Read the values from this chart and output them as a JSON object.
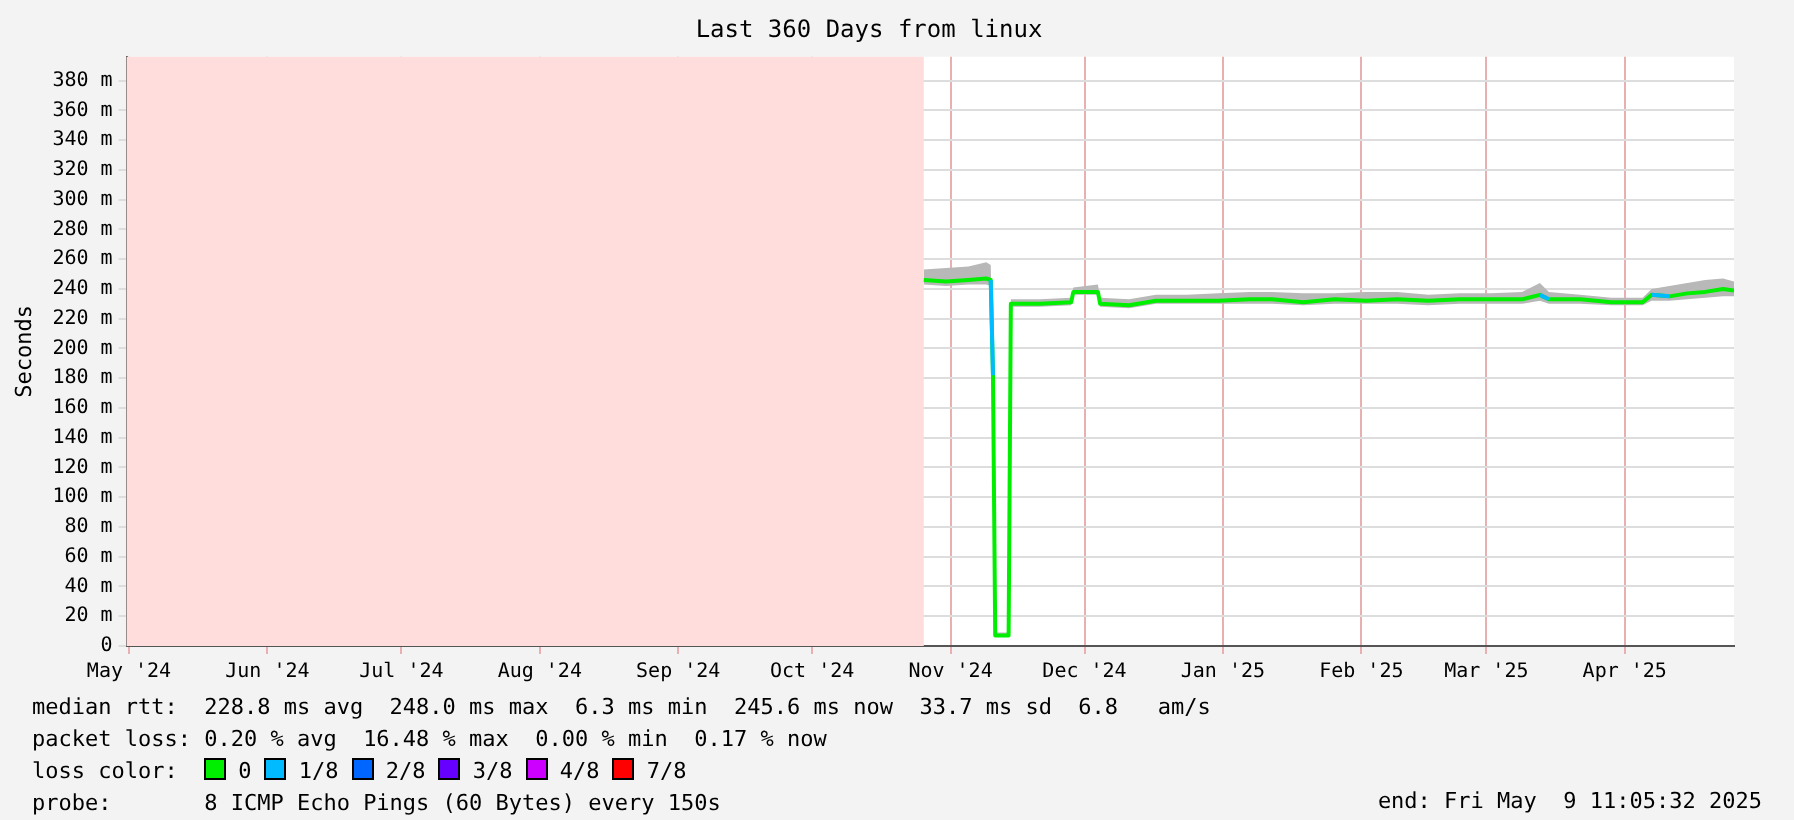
{
  "chart_data": {
    "type": "line",
    "title": "Last 360 Days from linux",
    "ylabel": "Seconds",
    "legend_title": "loss color:",
    "legend": "bottom",
    "grid": true,
    "marker": "none",
    "line_style": "solid",
    "x": [
      "2024-11-09",
      "2024-11-14",
      "2024-11-19",
      "2024-11-23",
      "2024-11-24",
      "2024-11-24T12:00",
      "2024-11-25",
      "2024-11-28",
      "2024-11-28T12:00",
      "2024-12-05",
      "2024-12-12",
      "2024-12-12T12:00",
      "2024-12-18",
      "2024-12-18T12:00",
      "2024-12-25",
      "2024-12-31",
      "2025-01-07",
      "2025-01-14",
      "2025-01-21",
      "2025-01-26",
      "2025-02-02",
      "2025-02-09",
      "2025-02-16",
      "2025-02-23",
      "2025-03-02",
      "2025-03-09",
      "2025-03-16",
      "2025-03-23",
      "2025-03-27",
      "2025-03-29",
      "2025-04-05",
      "2025-04-12",
      "2025-04-19",
      "2025-04-21",
      "2025-04-25",
      "2025-04-29",
      "2025-05-03",
      "2025-05-07",
      "2025-05-09T11:05"
    ],
    "series": [
      {
        "name": "0",
        "color": "#00ee00",
        "values": [
          246,
          245,
          246,
          247,
          246,
          182,
          7,
          7,
          230,
          230,
          231,
          238,
          238,
          230,
          229,
          232,
          232,
          232,
          233,
          233,
          231,
          233,
          232,
          233,
          232,
          233,
          233,
          233,
          236,
          233,
          233,
          231,
          231,
          236,
          235,
          237,
          238,
          240,
          239
        ],
        "lower": [
          243,
          242,
          243,
          243,
          242,
          180,
          6,
          6,
          228,
          228,
          229,
          236,
          236,
          228,
          227,
          230,
          230,
          230,
          230,
          230,
          229,
          230,
          230,
          230,
          229,
          230,
          230,
          230,
          232,
          230,
          230,
          229,
          229,
          232,
          232,
          233,
          234,
          235,
          235
        ],
        "upper": [
          253,
          254,
          255,
          258,
          256,
          190,
          9,
          9,
          233,
          233,
          234,
          241,
          243,
          234,
          233,
          236,
          236,
          237,
          238,
          238,
          237,
          237,
          238,
          238,
          236,
          237,
          237,
          238,
          244,
          238,
          236,
          234,
          234,
          240,
          242,
          244,
          246,
          247,
          245
        ]
      },
      {
        "name": "1/8",
        "color": "#00bbff",
        "values": [
          null,
          null,
          null,
          null,
          246,
          182,
          null,
          null,
          null,
          null,
          null,
          null,
          null,
          null,
          null,
          null,
          null,
          null,
          null,
          null,
          null,
          null,
          null,
          null,
          null,
          null,
          null,
          null,
          236,
          233,
          null,
          null,
          null,
          236,
          235,
          null,
          null,
          null,
          null
        ]
      },
      {
        "name": "2/8",
        "color": "#0066ff",
        "values": [
          null,
          null,
          null,
          null,
          null,
          null,
          null,
          null,
          null,
          null,
          null,
          null,
          null,
          null,
          null,
          null,
          null,
          null,
          null,
          null,
          null,
          null,
          null,
          null,
          null,
          null,
          null,
          null,
          null,
          null,
          null,
          null,
          null,
          null,
          null,
          null,
          null,
          null,
          null
        ]
      },
      {
        "name": "3/8",
        "color": "#6600ff",
        "values": [
          null,
          null,
          null,
          null,
          null,
          null,
          null,
          null,
          null,
          null,
          null,
          null,
          null,
          null,
          null,
          null,
          null,
          null,
          null,
          null,
          null,
          null,
          null,
          null,
          null,
          null,
          null,
          null,
          null,
          null,
          null,
          null,
          null,
          null,
          null,
          null,
          null,
          null,
          null
        ]
      },
      {
        "name": "4/8",
        "color": "#cc00ff",
        "values": [
          null,
          null,
          null,
          null,
          null,
          null,
          null,
          null,
          null,
          null,
          null,
          null,
          null,
          null,
          null,
          null,
          null,
          null,
          null,
          null,
          null,
          null,
          null,
          null,
          null,
          null,
          null,
          null,
          null,
          null,
          null,
          null,
          null,
          null,
          null,
          null,
          null,
          null,
          null
        ]
      },
      {
        "name": "7/8",
        "color": "#ff0000",
        "values": [
          null,
          null,
          null,
          null,
          null,
          null,
          null,
          null,
          null,
          null,
          null,
          null,
          null,
          null,
          null,
          null,
          null,
          null,
          null,
          null,
          null,
          null,
          null,
          null,
          null,
          null,
          null,
          null,
          null,
          null,
          null,
          null,
          null,
          null,
          null,
          null,
          null,
          null,
          null
        ]
      }
    ],
    "xlim": [
      "2024-05-14T11:05",
      "2025-05-09T11:05"
    ],
    "xticks": [
      {
        "value": "2024-05-15",
        "label": "May '24"
      },
      {
        "value": "2024-06-15",
        "label": "Jun '24"
      },
      {
        "value": "2024-07-15",
        "label": "Jul '24"
      },
      {
        "value": "2024-08-15",
        "label": "Aug '24"
      },
      {
        "value": "2024-09-15",
        "label": "Sep '24"
      },
      {
        "value": "2024-10-15",
        "label": "Oct '24"
      },
      {
        "value": "2024-11-15",
        "label": "Nov '24"
      },
      {
        "value": "2024-12-15",
        "label": "Dec '24"
      },
      {
        "value": "2025-01-15",
        "label": "Jan '25"
      },
      {
        "value": "2025-02-15",
        "label": "Feb '25"
      },
      {
        "value": "2025-03-15",
        "label": "Mar '25"
      },
      {
        "value": "2025-04-15",
        "label": "Apr '25"
      }
    ],
    "ylim": [
      0,
      396
    ],
    "yticks": [
      0,
      {
        "value": 20,
        "label": "20 m"
      },
      {
        "value": 40,
        "label": "40 m"
      },
      {
        "value": 60,
        "label": "60 m"
      },
      {
        "value": 80,
        "label": "80 m"
      },
      {
        "value": 100,
        "label": "100 m"
      },
      {
        "value": 120,
        "label": "120 m"
      },
      {
        "value": 140,
        "label": "140 m"
      },
      {
        "value": 160,
        "label": "160 m"
      },
      {
        "value": 180,
        "label": "180 m"
      },
      {
        "value": 200,
        "label": "200 m"
      },
      {
        "value": 220,
        "label": "220 m"
      },
      {
        "value": 240,
        "label": "240 m"
      },
      {
        "value": 260,
        "label": "260 m"
      },
      {
        "value": 280,
        "label": "280 m"
      },
      {
        "value": 300,
        "label": "300 m"
      },
      {
        "value": 320,
        "label": "320 m"
      },
      {
        "value": 340,
        "label": "340 m"
      },
      {
        "value": 360,
        "label": "360 m"
      },
      {
        "value": 380,
        "label": "380 m"
      }
    ],
    "bands": [
      {
        "axis": "x",
        "from": "2024-05-14T11:05",
        "to": "2024-11-09",
        "color": "#ffdddd"
      }
    ],
    "annotations": [
      "median rtt:  228.8 ms avg  248.0 ms max  6.3 ms min  245.6 ms now  33.7 ms sd  6.8   am/s",
      "packet loss: 0.20 % avg  16.48 % max  0.00 % min  0.17 % now",
      "probe:       8 ICMP Echo Pings (60 Bytes) every 150s",
      "end: Fri May  9 11:05:32 2025"
    ]
  }
}
